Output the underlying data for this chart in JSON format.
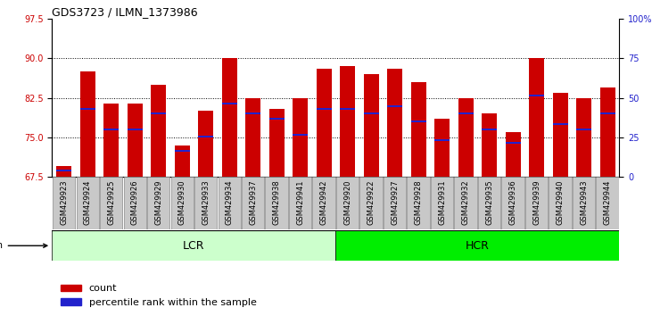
{
  "title": "GDS3723 / ILMN_1373986",
  "samples": [
    "GSM429923",
    "GSM429924",
    "GSM429925",
    "GSM429926",
    "GSM429929",
    "GSM429930",
    "GSM429933",
    "GSM429934",
    "GSM429937",
    "GSM429938",
    "GSM429941",
    "GSM429942",
    "GSM429920",
    "GSM429922",
    "GSM429927",
    "GSM429928",
    "GSM429931",
    "GSM429932",
    "GSM429935",
    "GSM429936",
    "GSM429939",
    "GSM429940",
    "GSM429943",
    "GSM429944"
  ],
  "count_values": [
    69.5,
    87.5,
    81.5,
    81.5,
    85.0,
    73.5,
    80.0,
    90.0,
    82.5,
    80.5,
    82.5,
    88.0,
    88.5,
    87.0,
    88.0,
    85.5,
    78.5,
    82.5,
    79.5,
    76.0,
    90.0,
    83.5,
    82.5,
    84.5
  ],
  "percentile_values": [
    68.8,
    80.5,
    76.5,
    76.5,
    79.5,
    72.5,
    75.2,
    81.5,
    79.5,
    78.5,
    75.5,
    80.5,
    80.5,
    79.5,
    81.0,
    78.0,
    74.5,
    79.5,
    76.5,
    74.0,
    83.0,
    77.5,
    76.5,
    79.5
  ],
  "lcr_count": 12,
  "hcr_count": 12,
  "ylim_left": [
    67.5,
    97.5
  ],
  "yticks_left": [
    67.5,
    75.0,
    82.5,
    90.0,
    97.5
  ],
  "yticks_right_vals": [
    0,
    25,
    50,
    75,
    100
  ],
  "yticks_right_labels": [
    "0",
    "25",
    "50",
    "75",
    "100%"
  ],
  "bar_color": "#cc0000",
  "percentile_color": "#2222cc",
  "lcr_color": "#ccffcc",
  "hcr_color": "#00ee00",
  "xtick_bg_color": "#c8c8c8",
  "background_color": "#ffffff",
  "plot_bg_color": "#ffffff",
  "bar_width": 0.65,
  "tick_label_color_left": "#cc0000",
  "tick_label_color_right": "#2222cc",
  "fontsize_tick": 7,
  "fontsize_title": 9,
  "fontsize_strain": 9,
  "fontsize_legend": 8
}
